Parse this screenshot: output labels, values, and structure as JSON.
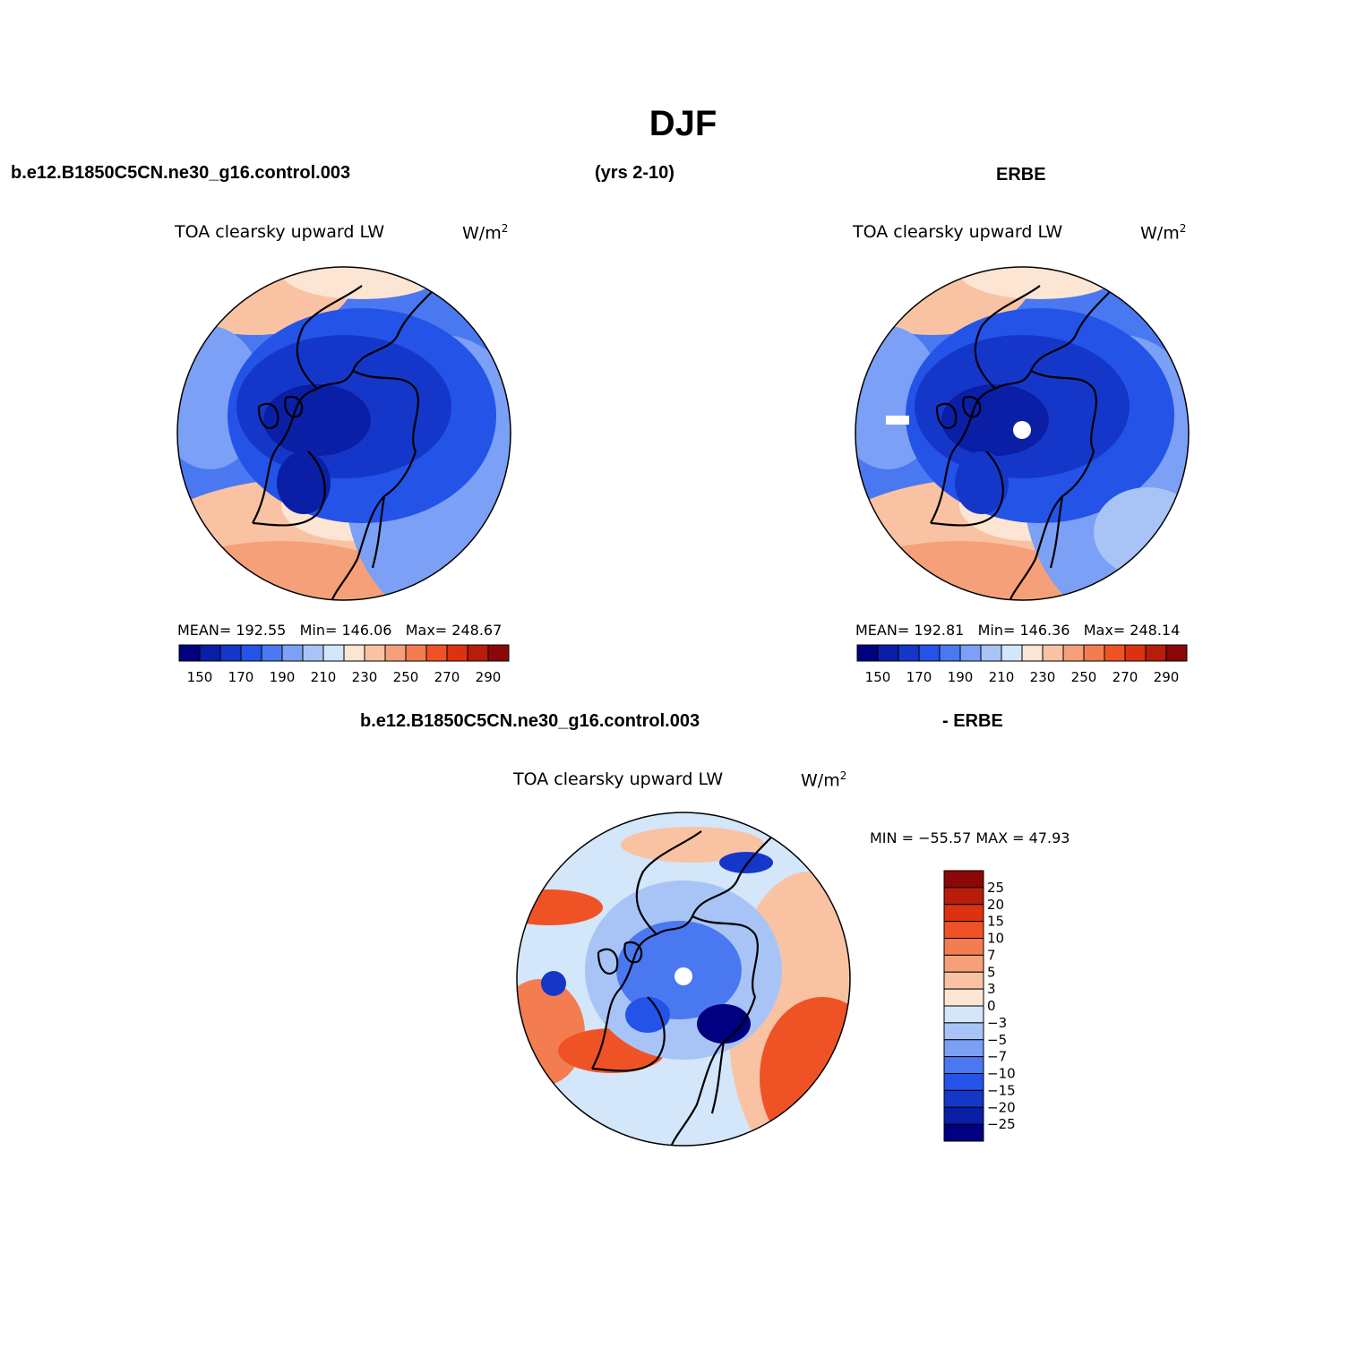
{
  "figure": {
    "title": "DJF",
    "case_name": "b.e12.B1850C5CN.ne30_g16.control.003",
    "years": "(yrs 2-10)",
    "obs_name": "ERBE",
    "diff_case_name": "b.e12.B1850C5CN.ne30_g16.control.003",
    "diff_obs_name": "- ERBE"
  },
  "panels": {
    "model": {
      "title": "TOA clearsky upward LW",
      "units": "W/m",
      "units_sup": "2",
      "stats": {
        "mean_label": "MEAN=",
        "mean": "192.55",
        "min_label": "Min=",
        "min": "146.06",
        "max_label": "Max=",
        "max": "248.67"
      }
    },
    "obs": {
      "title": "TOA clearsky upward LW",
      "units": "W/m",
      "units_sup": "2",
      "stats": {
        "mean_label": "MEAN=",
        "mean": "192.81",
        "min_label": "Min=",
        "min": "146.36",
        "max_label": "Max=",
        "max": "248.14"
      }
    },
    "diff": {
      "title": "TOA clearsky upward LW",
      "units": "W/m",
      "units_sup": "2",
      "minmax": "MIN = −55.57 MAX =  47.93"
    }
  },
  "chart_data": [
    {
      "type": "heatmap",
      "projection": "north polar stereographic",
      "title": "TOA clearsky upward LW",
      "units": "W/m²",
      "mean": 192.55,
      "min": 146.06,
      "max": 248.67,
      "colorbar": {
        "ticks": [
          150,
          170,
          190,
          210,
          230,
          250,
          270,
          290
        ],
        "colors": [
          "#000080",
          "#0a1fa6",
          "#1537c9",
          "#2453e8",
          "#4a78f0",
          "#7ba0f5",
          "#a8c4f7",
          "#d4e6fa",
          "#fde5d4",
          "#f9c3a3",
          "#f6a07a",
          "#f37c50",
          "#ef5325",
          "#dc3210",
          "#b81c0a",
          "#8c0808"
        ]
      }
    },
    {
      "type": "heatmap",
      "projection": "north polar stereographic",
      "title": "TOA clearsky upward LW",
      "units": "W/m²",
      "mean": 192.81,
      "min": 146.36,
      "max": 248.14,
      "colorbar": {
        "ticks": [
          150,
          170,
          190,
          210,
          230,
          250,
          270,
          290
        ],
        "colors": [
          "#000080",
          "#0a1fa6",
          "#1537c9",
          "#2453e8",
          "#4a78f0",
          "#7ba0f5",
          "#a8c4f7",
          "#d4e6fa",
          "#fde5d4",
          "#f9c3a3",
          "#f6a07a",
          "#f37c50",
          "#ef5325",
          "#dc3210",
          "#b81c0a",
          "#8c0808"
        ]
      }
    },
    {
      "type": "heatmap",
      "projection": "north polar stereographic",
      "title": "TOA clearsky upward LW",
      "units": "W/m²",
      "min": -55.57,
      "max": 47.93,
      "colorbar": {
        "orientation": "vertical",
        "ticks": [
          "25",
          "20",
          "15",
          "10",
          "7",
          "5",
          "3",
          "0",
          "−3",
          "−5",
          "−7",
          "−10",
          "−15",
          "−20",
          "−25"
        ],
        "colors_top_to_bottom": [
          "#8c0808",
          "#b81c0a",
          "#dc3210",
          "#ef5325",
          "#f37c50",
          "#f6a07a",
          "#f9c3a3",
          "#fde5d4",
          "#d4e6fa",
          "#a8c4f7",
          "#7ba0f5",
          "#4a78f0",
          "#2453e8",
          "#1537c9",
          "#0a1fa6",
          "#000080"
        ]
      }
    }
  ],
  "colors": {
    "outline": "#000000",
    "missing": "#ffffff"
  }
}
